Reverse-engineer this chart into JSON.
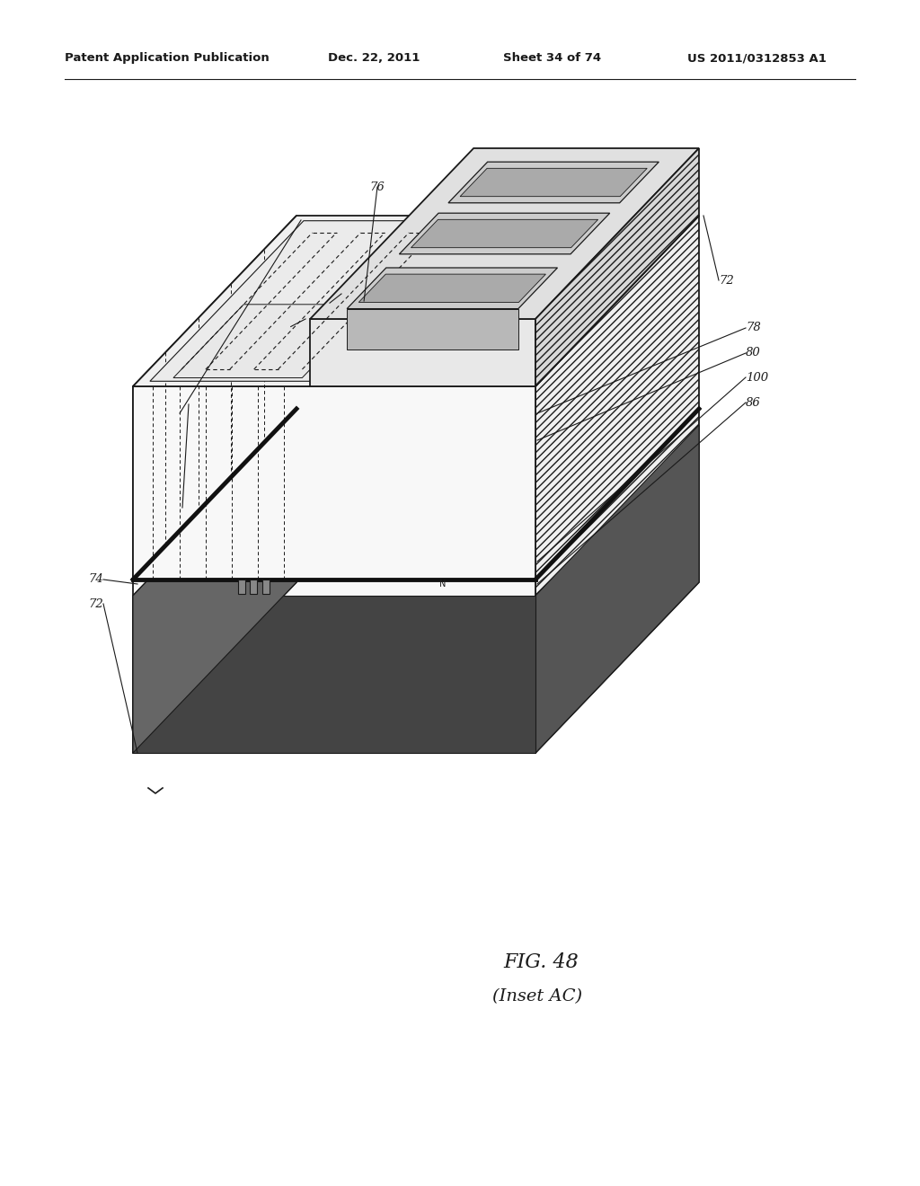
{
  "title_header": "Patent Application Publication",
  "date_header": "Dec. 22, 2011",
  "sheet_header": "Sheet 34 of 74",
  "patent_header": "US 2011/0312853 A1",
  "fig_label": "FIG. 48",
  "fig_sublabel": "(Inset AC)",
  "bg_color": "#ffffff",
  "line_color": "#1a1a1a"
}
